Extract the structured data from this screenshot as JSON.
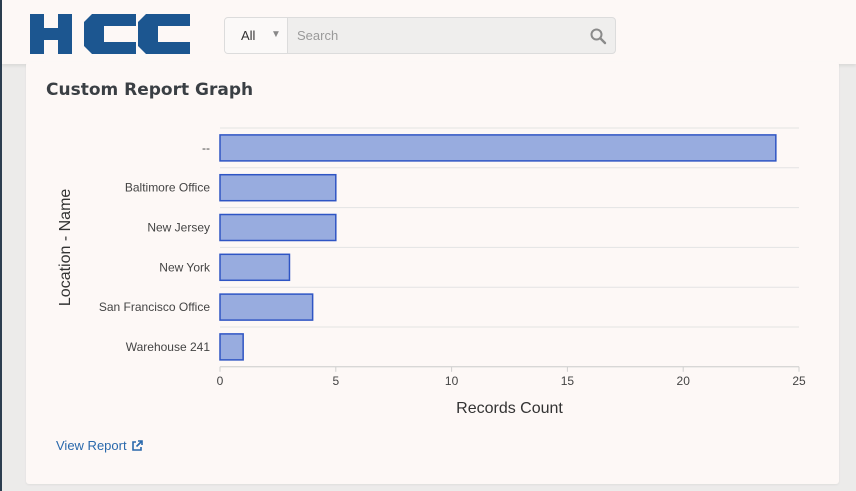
{
  "header": {
    "logo_text": "HCC",
    "search": {
      "scope_label": "All",
      "placeholder": "Search",
      "value": ""
    }
  },
  "card": {
    "title": "Custom Report Graph",
    "view_report_label": "View Report"
  },
  "chart_data": {
    "type": "bar",
    "orientation": "horizontal",
    "categories": [
      "--",
      "Baltimore Office",
      "New Jersey",
      "New York",
      "San Francisco Office",
      "Warehouse 241"
    ],
    "values": [
      24,
      5,
      5,
      3,
      4,
      1
    ],
    "xlabel": "Records Count",
    "ylabel": "Location - Name",
    "xlim": [
      0,
      25
    ],
    "xticks": [
      0,
      5,
      10,
      15,
      20,
      25
    ],
    "grid": true,
    "bar_fill": "#98acdf",
    "bar_stroke": "#2f55c4"
  },
  "colors": {
    "brand": "#1c5690",
    "link": "#2a69ac"
  },
  "icons": {
    "search": "search-icon",
    "external": "external-link-icon"
  }
}
